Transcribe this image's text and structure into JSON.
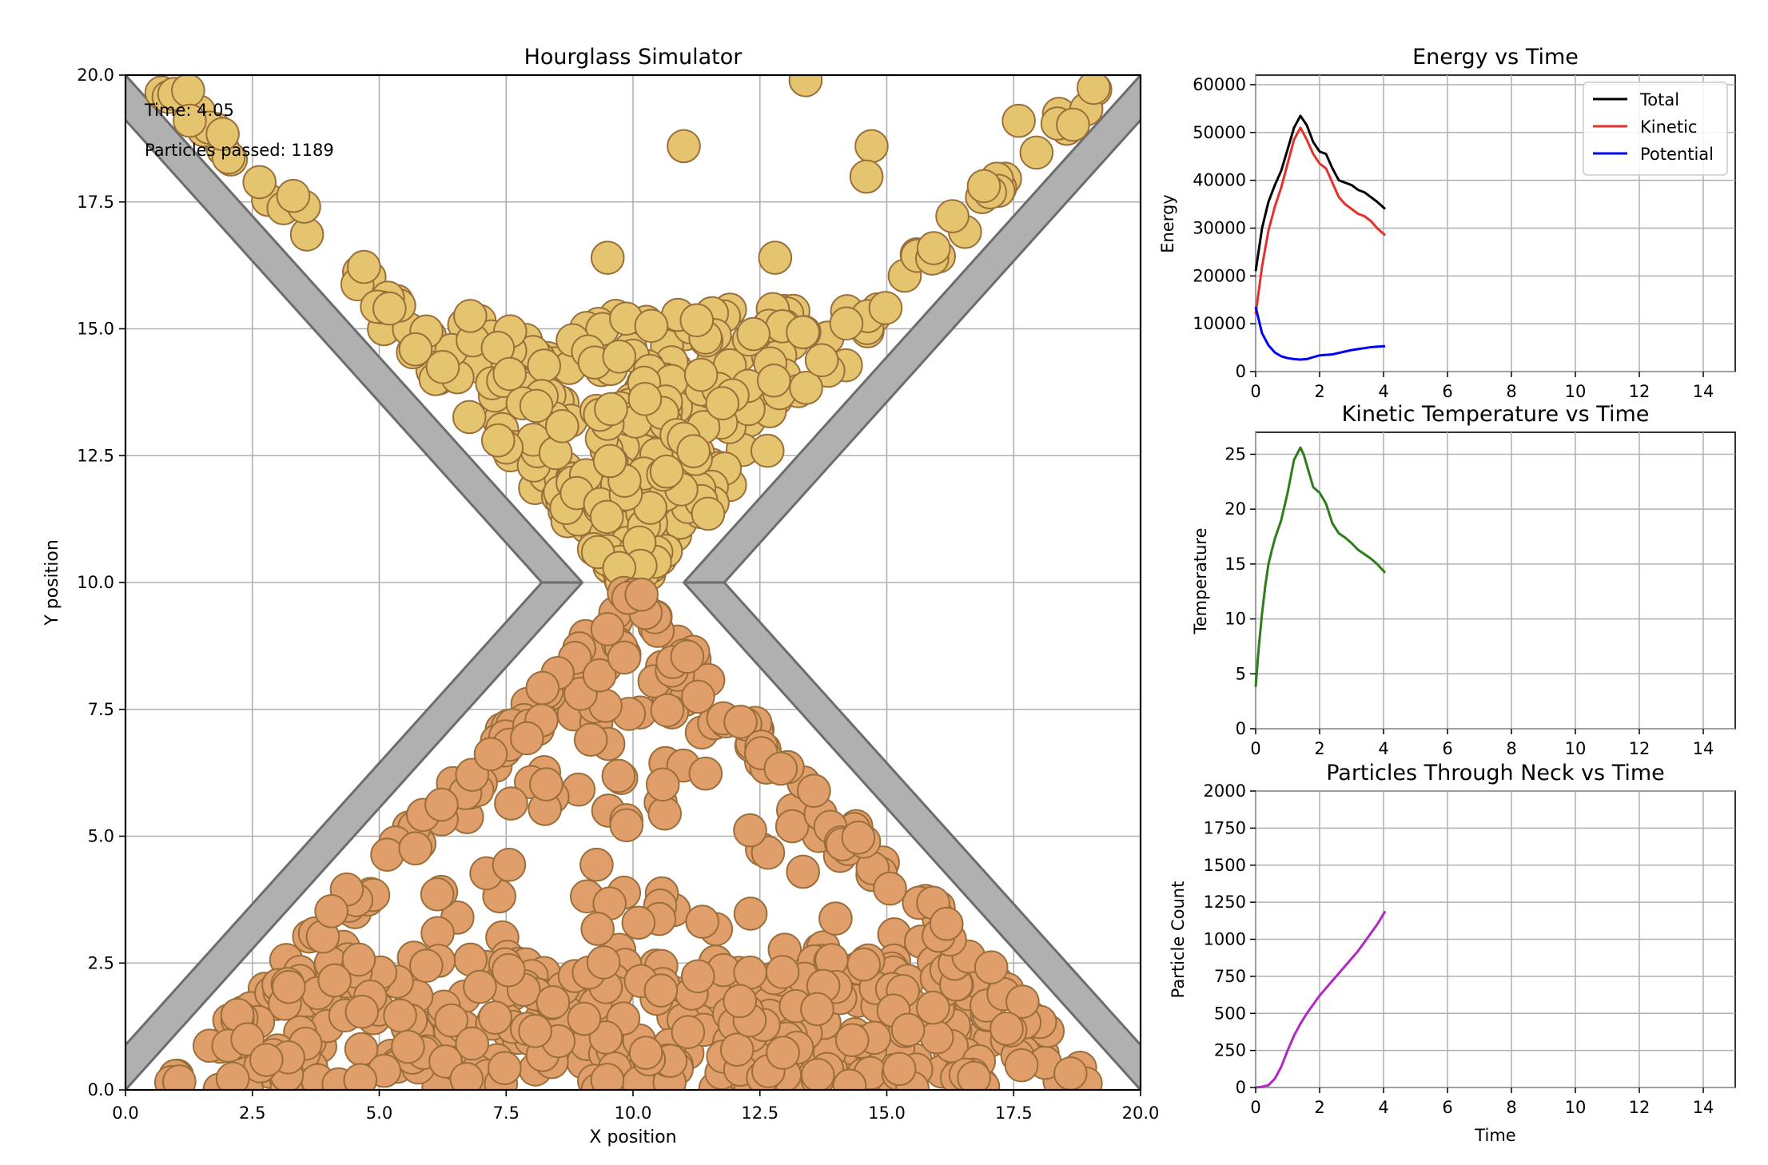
{
  "chart_data": [
    {
      "type": "scatter",
      "title": "Hourglass Simulator",
      "xlabel": "X position",
      "ylabel": "Y position",
      "xlim": [
        0,
        20
      ],
      "ylim": [
        0,
        20
      ],
      "xticks": [
        "0.0",
        "2.5",
        "5.0",
        "7.5",
        "10.0",
        "12.5",
        "15.0",
        "17.5",
        "20.0"
      ],
      "yticks": [
        "0.0",
        "2.5",
        "5.0",
        "7.5",
        "10.0",
        "12.5",
        "15.0",
        "17.5",
        "20.0"
      ],
      "grid": true,
      "annotations": {
        "time": "Time: 4.05",
        "passed": "Particles passed: 1189"
      },
      "walls": {
        "top_left": [
          [
            0,
            20
          ],
          [
            9,
            10
          ]
        ],
        "top_right": [
          [
            20,
            20
          ],
          [
            11,
            10
          ]
        ],
        "bottom_left": [
          [
            9,
            10
          ],
          [
            0,
            0
          ]
        ],
        "bottom_right": [
          [
            11,
            10
          ],
          [
            20,
            0
          ]
        ]
      },
      "particle_colors": {
        "upper": "#e5c46f",
        "lower": "#e09e6a",
        "edge": "#9a6e3a"
      },
      "wall_color": "#b0b0b0",
      "particles_upper_count": 811,
      "particles_lower_count": 1189,
      "particle_radius": 0.32
    },
    {
      "type": "line",
      "title": "Energy vs Time",
      "xlabel": "",
      "ylabel": "Energy",
      "xlim": [
        0,
        15
      ],
      "ylim": [
        0,
        62000
      ],
      "xticks": [
        "0",
        "2",
        "4",
        "6",
        "8",
        "10",
        "12",
        "14"
      ],
      "yticks": [
        "0",
        "10000",
        "20000",
        "30000",
        "40000",
        "50000",
        "60000"
      ],
      "grid": true,
      "legend": "top-right",
      "series": [
        {
          "name": "Total",
          "color": "#000000",
          "x": [
            0,
            0.2,
            0.4,
            0.6,
            0.8,
            1.0,
            1.2,
            1.4,
            1.6,
            1.8,
            2.0,
            2.2,
            2.4,
            2.6,
            2.8,
            3.0,
            3.2,
            3.4,
            3.6,
            3.8,
            4.05
          ],
          "y": [
            21000,
            30000,
            35500,
            39000,
            42000,
            46500,
            51000,
            53500,
            51500,
            48000,
            46000,
            45500,
            42500,
            40000,
            39500,
            39000,
            38000,
            37500,
            36500,
            35500,
            34000
          ]
        },
        {
          "name": "Kinetic",
          "color": "#e5312b",
          "x": [
            0,
            0.2,
            0.4,
            0.6,
            0.8,
            1.0,
            1.2,
            1.4,
            1.6,
            1.8,
            2.0,
            2.2,
            2.4,
            2.6,
            2.8,
            3.0,
            3.2,
            3.4,
            3.6,
            3.8,
            4.05
          ],
          "y": [
            12000,
            22000,
            29500,
            34500,
            38500,
            43500,
            48500,
            51000,
            48500,
            45500,
            43500,
            42500,
            39500,
            36500,
            35000,
            34000,
            33000,
            32500,
            31500,
            30000,
            28500
          ]
        },
        {
          "name": "Potential",
          "color": "#0000ff",
          "x": [
            0,
            0.2,
            0.4,
            0.6,
            0.8,
            1.0,
            1.2,
            1.4,
            1.6,
            1.8,
            2.0,
            2.2,
            2.4,
            2.6,
            2.8,
            3.0,
            3.2,
            3.4,
            3.6,
            3.8,
            4.05
          ],
          "y": [
            13500,
            8000,
            5500,
            4000,
            3200,
            2800,
            2600,
            2500,
            2600,
            3000,
            3400,
            3500,
            3600,
            3900,
            4200,
            4500,
            4700,
            4900,
            5100,
            5200,
            5300
          ]
        }
      ]
    },
    {
      "type": "line",
      "title": "Kinetic Temperature vs Time",
      "xlabel": "",
      "ylabel": "Temperature",
      "xlim": [
        0,
        15
      ],
      "ylim": [
        0,
        27
      ],
      "xticks": [
        "0",
        "2",
        "4",
        "6",
        "8",
        "10",
        "12",
        "14"
      ],
      "yticks": [
        "0",
        "5",
        "10",
        "15",
        "20",
        "25"
      ],
      "grid": true,
      "series": [
        {
          "name": "",
          "color": "#2e7d1a",
          "x": [
            0,
            0.1,
            0.2,
            0.3,
            0.4,
            0.5,
            0.6,
            0.8,
            1.0,
            1.2,
            1.4,
            1.5,
            1.6,
            1.8,
            2.0,
            2.2,
            2.4,
            2.6,
            2.8,
            3.0,
            3.2,
            3.4,
            3.6,
            3.8,
            4.05
          ],
          "y": [
            3.8,
            7.5,
            10.5,
            13,
            15,
            16.2,
            17.3,
            19,
            21.5,
            24.5,
            25.6,
            25,
            24,
            22,
            21.5,
            20.5,
            18.7,
            17.8,
            17.4,
            16.9,
            16.3,
            15.9,
            15.5,
            15,
            14.2
          ]
        }
      ]
    },
    {
      "type": "line",
      "title": "Particles Through Neck vs Time",
      "xlabel": "Time",
      "ylabel": "Particle Count",
      "xlim": [
        0,
        15
      ],
      "ylim": [
        0,
        2000
      ],
      "xticks": [
        "0",
        "2",
        "4",
        "6",
        "8",
        "10",
        "12",
        "14"
      ],
      "yticks": [
        "0",
        "250",
        "500",
        "750",
        "1000",
        "1250",
        "1500",
        "1750",
        "2000"
      ],
      "grid": true,
      "series": [
        {
          "name": "",
          "color": "#b129c3",
          "x": [
            0,
            0.2,
            0.4,
            0.6,
            0.8,
            1.0,
            1.2,
            1.4,
            1.6,
            1.8,
            2.0,
            2.2,
            2.4,
            2.6,
            2.8,
            3.0,
            3.2,
            3.4,
            3.6,
            3.8,
            4.05
          ],
          "y": [
            0,
            5,
            15,
            60,
            140,
            250,
            350,
            430,
            500,
            560,
            620,
            670,
            720,
            770,
            820,
            870,
            920,
            980,
            1040,
            1100,
            1189
          ]
        }
      ]
    }
  ]
}
